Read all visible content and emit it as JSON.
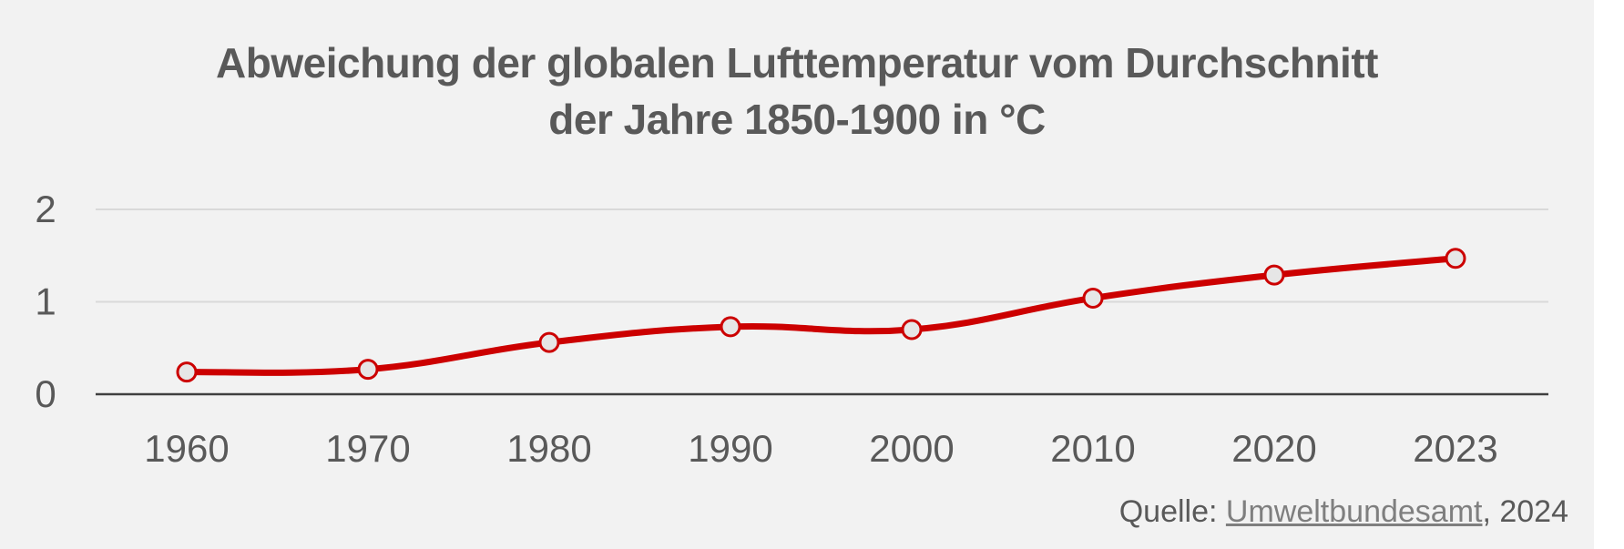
{
  "chart_data": {
    "type": "line",
    "title_line1": "Abweichung der globalen Lufttemperatur vom Durchschnitt",
    "title_line2": "der Jahre 1850-1900 in °C",
    "xlabel": "",
    "ylabel": "",
    "categories": [
      "1960",
      "1970",
      "1980",
      "1990",
      "2000",
      "2010",
      "2020",
      "2023"
    ],
    "series": [
      {
        "values": [
          0.24,
          0.27,
          0.56,
          0.73,
          0.7,
          1.04,
          1.29,
          1.47
        ]
      }
    ],
    "yticks": [
      "0",
      "1",
      "2"
    ],
    "ylim": [
      0,
      2
    ],
    "grid": true,
    "legend": "none",
    "line_color": "#cc0000",
    "marker_fill": "#e6e6e6"
  },
  "source": {
    "prefix": "Quelle: ",
    "link": "Umweltbundesamt",
    "suffix": ", 2024"
  }
}
